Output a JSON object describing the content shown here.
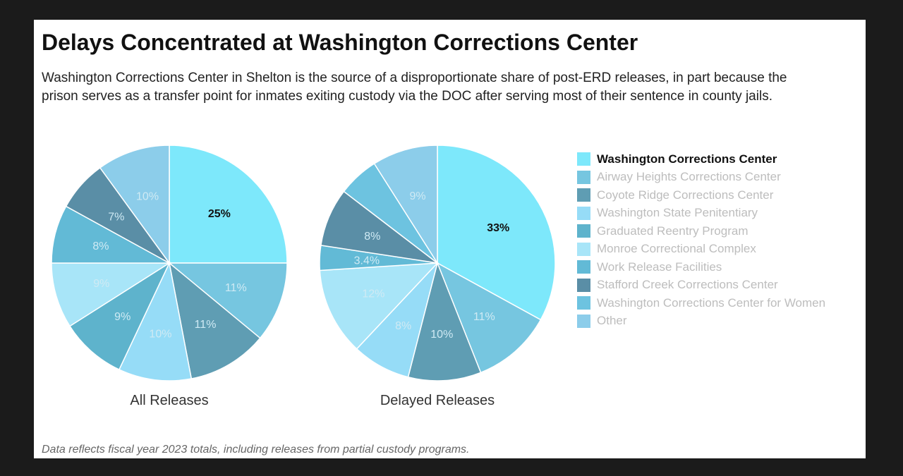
{
  "title": "Delays Concentrated at Washington Corrections Center",
  "subtitle": "Washington Corrections Center in Shelton is the source of a disproportionate share of post-ERD releases, in part because the prison serves as a transfer point for inmates exiting custody via the DOC after serving most of their sentence in county jails.",
  "footnote": "Data reflects fiscal year 2023 totals, including releases from partial custody programs.",
  "legend": {
    "highlighted": "Washington Corrections Center",
    "items": [
      {
        "label": "Washington Corrections Center",
        "color": "#7de8fb"
      },
      {
        "label": "Airway Heights Corrections Center",
        "color": "#76c6e0"
      },
      {
        "label": "Coyote Ridge Corrections Center",
        "color": "#5f9db3"
      },
      {
        "label": "Washington State Penitentiary",
        "color": "#96dcf7"
      },
      {
        "label": "Graduated Reentry Program",
        "color": "#5eb3cc"
      },
      {
        "label": "Monroe Correctional Complex",
        "color": "#a8e5f8"
      },
      {
        "label": "Work Release Facilities",
        "color": "#62bad6"
      },
      {
        "label": "Stafford Creek Corrections Center",
        "color": "#5a8ea6"
      },
      {
        "label": "Washington Corrections Center for Women",
        "color": "#6dc3e0"
      },
      {
        "label": "Other",
        "color": "#8ccdea"
      }
    ]
  },
  "chart_data": [
    {
      "type": "pie",
      "title": "All Releases",
      "categories": [
        "Washington Corrections Center",
        "Airway Heights Corrections Center",
        "Coyote Ridge Corrections Center",
        "Washington State Penitentiary",
        "Graduated Reentry Program",
        "Monroe Correctional Complex",
        "Work Release Facilities",
        "Stafford Creek Corrections Center",
        "Washington Corrections Center for Women",
        "Other"
      ],
      "values": [
        25,
        11,
        11,
        10,
        9,
        9,
        8,
        7,
        0,
        10
      ],
      "labels": [
        "25%",
        "11%",
        "11%",
        "10%",
        "9%",
        "9%",
        "8%",
        "7%",
        "",
        "10%"
      ]
    },
    {
      "type": "pie",
      "title": "Delayed Releases",
      "categories": [
        "Washington Corrections Center",
        "Airway Heights Corrections Center",
        "Coyote Ridge Corrections Center",
        "Washington State Penitentiary",
        "Graduated Reentry Program",
        "Monroe Correctional Complex",
        "Work Release Facilities",
        "Stafford Creek Corrections Center",
        "Washington Corrections Center for Women",
        "Other"
      ],
      "values": [
        33,
        11,
        10,
        8,
        0,
        12,
        3.4,
        8,
        5.6,
        9
      ],
      "labels": [
        "33%",
        "11%",
        "10%",
        "8%",
        "",
        "12%",
        "3.4%",
        "8%",
        "",
        "9%"
      ]
    }
  ]
}
